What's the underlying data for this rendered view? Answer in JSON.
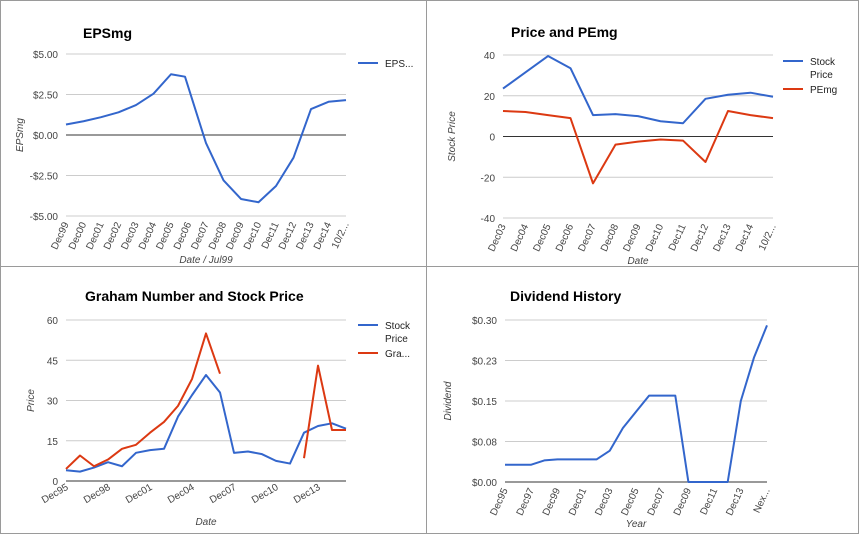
{
  "colors": {
    "blue": "#3366cc",
    "red": "#dc3912",
    "grid": "#cccccc",
    "zero": "#333333",
    "text": "#444444"
  },
  "chart_data": [
    {
      "type": "line",
      "title": "EPSmg",
      "xlabel": "Date / Jul99",
      "ylabel": "EPSmg",
      "ylim": [
        -5,
        5
      ],
      "yticks": [
        5,
        2.5,
        0,
        -2.5,
        -5
      ],
      "ytick_labels": [
        "$5.00",
        "$2.50",
        "$0.00",
        "-$2.50",
        "-$5.00"
      ],
      "categories": [
        "Dec99",
        "Dec00",
        "Dec01",
        "Dec02",
        "Dec03",
        "Dec04",
        "Dec05",
        "Dec06",
        "Dec07",
        "Dec08",
        "Dec09",
        "Dec10",
        "Dec11",
        "Dec12",
        "Dec13",
        "Dec14",
        "10/2..."
      ],
      "legend_position": "right",
      "grid": true,
      "series": [
        {
          "name": "EPS...",
          "color": "#3366cc",
          "x": [
            0,
            1,
            2,
            3,
            4,
            5,
            6,
            6.8,
            8,
            9,
            10,
            11,
            12,
            13,
            14,
            15,
            16
          ],
          "y": [
            0.65,
            0.85,
            1.1,
            1.4,
            1.85,
            2.55,
            3.75,
            3.6,
            -0.5,
            -2.8,
            -3.95,
            -4.15,
            -3.15,
            -1.4,
            1.6,
            2.05,
            2.15
          ]
        }
      ]
    },
    {
      "type": "line",
      "title": "Price and PEmg",
      "xlabel": "Date",
      "ylabel": "Stock Price",
      "ylim": [
        -40,
        40
      ],
      "yticks": [
        40,
        20,
        0,
        -20,
        -40
      ],
      "ytick_labels": [
        "40",
        "20",
        "0",
        "-20",
        "-40"
      ],
      "categories": [
        "Dec03",
        "Dec04",
        "Dec05",
        "Dec06",
        "Dec07",
        "Dec08",
        "Dec09",
        "Dec10",
        "Dec11",
        "Dec12",
        "Dec13",
        "Dec14",
        "10/2..."
      ],
      "legend_position": "right",
      "grid": true,
      "series": [
        {
          "name": "Stock Price",
          "color": "#3366cc",
          "x": [
            0,
            1,
            2,
            3,
            4,
            5,
            6,
            7,
            8,
            9,
            10,
            11,
            12
          ],
          "y": [
            23.5,
            31.5,
            39.5,
            33.5,
            10.5,
            11,
            10,
            7.5,
            6.5,
            18.5,
            20.5,
            21.5,
            19.5
          ]
        },
        {
          "name": "PEmg",
          "color": "#dc3912",
          "x": [
            0,
            1,
            2,
            3,
            4,
            5,
            6,
            7,
            8,
            9,
            10,
            11,
            12
          ],
          "y": [
            12.5,
            12,
            10.5,
            9,
            -23,
            -4,
            -2.5,
            -1.5,
            -2,
            -12.5,
            12.5,
            10.5,
            9
          ]
        }
      ]
    },
    {
      "type": "line",
      "title": "Graham Number and Stock Price",
      "xlabel": "Date",
      "ylabel": "Price",
      "ylim": [
        0,
        60
      ],
      "yticks": [
        60,
        45,
        30,
        15,
        0
      ],
      "ytick_labels": [
        "60",
        "45",
        "30",
        "15",
        "0"
      ],
      "categories": [
        "Dec95",
        "Dec98",
        "Dec01",
        "Dec04",
        "Dec07",
        "Dec10",
        "Dec13"
      ],
      "legend_position": "right",
      "grid": true,
      "series": [
        {
          "name": "Stock Price",
          "color": "#3366cc",
          "x": [
            0,
            1,
            2,
            3,
            4,
            5,
            6,
            7,
            8,
            9,
            10,
            11,
            12,
            13,
            14,
            15,
            16,
            17,
            18,
            19,
            20
          ],
          "y": [
            4,
            3.5,
            5,
            7,
            5.5,
            10.5,
            11.5,
            12,
            24,
            32,
            39.5,
            33,
            10.5,
            11,
            10,
            7.5,
            6.5,
            18,
            20.5,
            21.5,
            19.5
          ]
        },
        {
          "name": "Gra...",
          "color": "#dc3912",
          "x": [
            0,
            1,
            2,
            3,
            4,
            5,
            6,
            7,
            8,
            9,
            10,
            11,
            17,
            18,
            19,
            20
          ],
          "y": [
            4.5,
            9.5,
            5.5,
            8,
            12,
            13.5,
            18,
            22,
            28,
            38,
            55,
            40,
            8.5,
            43,
            19,
            19
          ]
        }
      ]
    },
    {
      "type": "line",
      "title": "Dividend History",
      "xlabel": "Year",
      "ylabel": "Dividend",
      "ylim": [
        0,
        0.3
      ],
      "yticks": [
        0.3,
        0.225,
        0.15,
        0.075,
        0
      ],
      "ytick_labels": [
        "$0.30",
        "$0.23",
        "$0.15",
        "$0.08",
        "$0.00"
      ],
      "categories": [
        "Dec95",
        "Dec97",
        "Dec99",
        "Dec01",
        "Dec03",
        "Dec05",
        "Dec07",
        "Dec09",
        "Dec11",
        "Dec13",
        "Nex..."
      ],
      "legend_position": "none",
      "grid": true,
      "series": [
        {
          "name": "",
          "color": "#3366cc",
          "x": [
            0,
            1,
            2,
            3,
            4,
            5,
            6,
            7,
            8,
            9,
            10,
            11,
            12,
            13,
            14,
            15,
            16,
            17,
            18,
            19,
            20
          ],
          "y": [
            0.032,
            0.032,
            0.032,
            0.04,
            0.042,
            0.042,
            0.042,
            0.042,
            0.058,
            0.1,
            0.13,
            0.16,
            0.16,
            0.16,
            0,
            0,
            0,
            0,
            0.15,
            0.23,
            0.29
          ]
        }
      ]
    }
  ]
}
